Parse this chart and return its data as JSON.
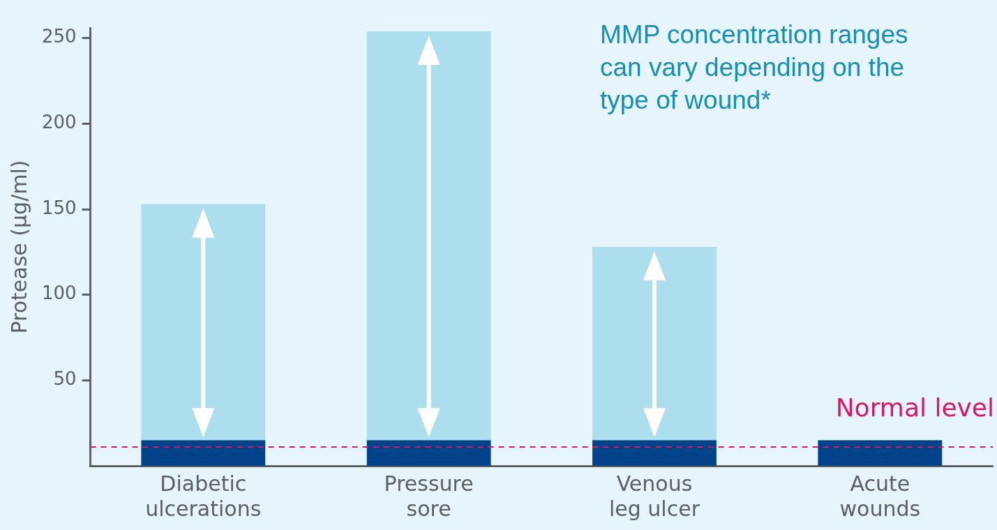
{
  "chart_data": {
    "type": "bar",
    "stacked": true,
    "ylabel": "Protease (µg/ml)",
    "categories": [
      "Diabetic ulcerations",
      "Pressure sore",
      "Venous leg ulcer",
      "Acute wounds"
    ],
    "series": [
      {
        "color": "#00438a",
        "values": [
          15,
          15,
          15,
          15
        ]
      },
      {
        "color": "#acdeed",
        "values": [
          138,
          239,
          113,
          0
        ]
      }
    ],
    "ylim": [
      0,
      256
    ],
    "yticks": [
      50,
      100,
      150,
      200,
      250
    ],
    "grid": false,
    "legend": false,
    "ref_lines": [
      {
        "axis": "y",
        "value": 11,
        "label": "Normal level",
        "color": "#d8176a",
        "line_style": "dashed"
      }
    ],
    "annotations": [
      "MMP concentration ranges can vary depending on the type of wound*"
    ]
  }
}
